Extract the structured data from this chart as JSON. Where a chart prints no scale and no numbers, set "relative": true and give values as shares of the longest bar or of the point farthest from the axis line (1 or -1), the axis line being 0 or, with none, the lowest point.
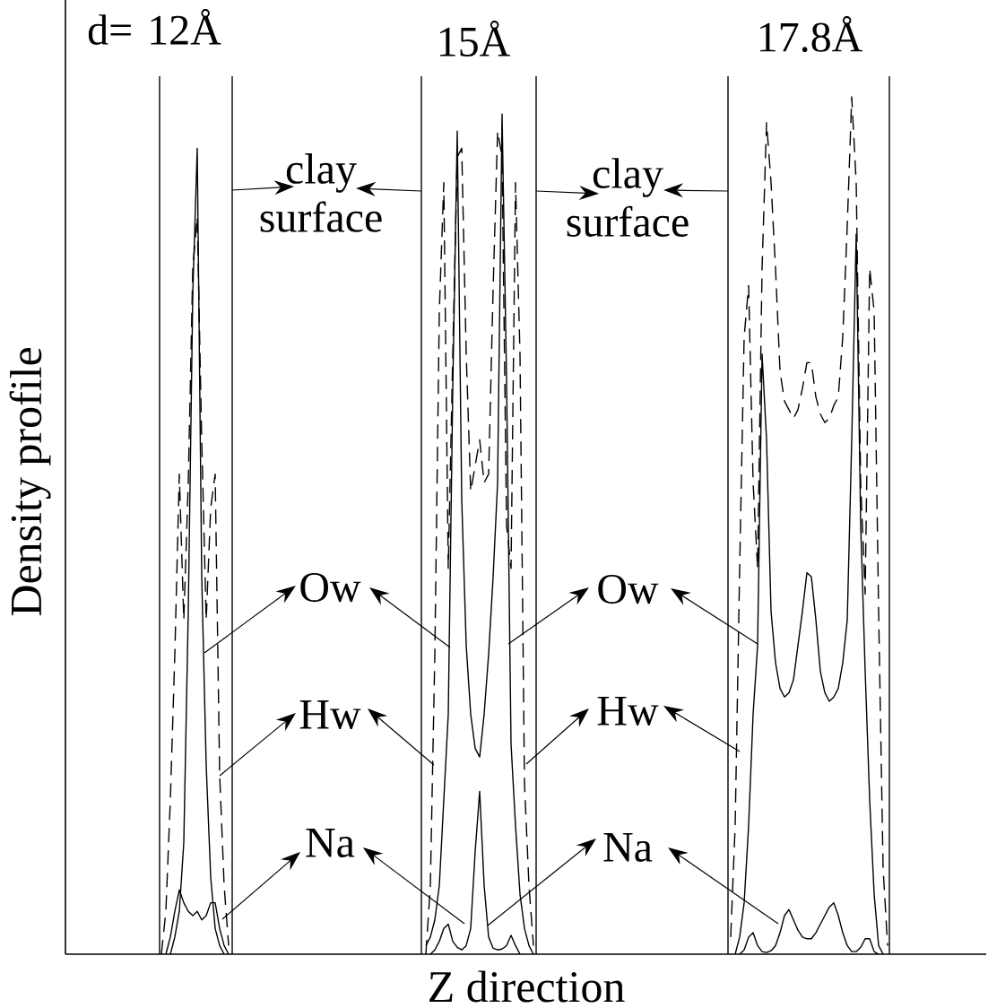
{
  "chart_data": {
    "type": "line",
    "relative": true,
    "xlabel": "Z direction",
    "ylabel": "Density profile",
    "annotations": [
      "d= 12Å",
      "15Å",
      "17.8Å",
      "clay surface",
      "clay surface",
      "Ow",
      "Ow",
      "Hw",
      "Hw",
      "Na",
      "Na"
    ],
    "categories": [
      null,
      null,
      null,
      null,
      null,
      null,
      null,
      null,
      null,
      null,
      null,
      null,
      null,
      null,
      null,
      null,
      null,
      null,
      null,
      null,
      null,
      null,
      null,
      null,
      null,
      null,
      null,
      null,
      null,
      null,
      null,
      null,
      null,
      null,
      null,
      null,
      null,
      null,
      null,
      null,
      null,
      null,
      null,
      null,
      null,
      null,
      null,
      null,
      null,
      null,
      null,
      null,
      null,
      null,
      null,
      null,
      null,
      null,
      null,
      null,
      null,
      null,
      null,
      null,
      null,
      null,
      null,
      null,
      null,
      null,
      null,
      null,
      null,
      null,
      null,
      null,
      null,
      null,
      null,
      null,
      null,
      null,
      null,
      null,
      null,
      null,
      null,
      null,
      null,
      null,
      null,
      null,
      null,
      null,
      null,
      null,
      null,
      null,
      null,
      null,
      null,
      null,
      null,
      null,
      null,
      null,
      null,
      null,
      null,
      null,
      null,
      null,
      null,
      null,
      null,
      null,
      null,
      null,
      null,
      null,
      null,
      null,
      null,
      null,
      null,
      null,
      null,
      null,
      null,
      null,
      null,
      null,
      null,
      null,
      null,
      null,
      null,
      null,
      null,
      null,
      null,
      null,
      null,
      null,
      null,
      null,
      null,
      null,
      null,
      null,
      null,
      null,
      null,
      null,
      null,
      null,
      null,
      null,
      null,
      null,
      null,
      null,
      null,
      null,
      null,
      null,
      null,
      null,
      null,
      null,
      null,
      null,
      null,
      null,
      null,
      null,
      null,
      null,
      null,
      null,
      null,
      null,
      null,
      null,
      null,
      null,
      null,
      null,
      null,
      null,
      null,
      null,
      null,
      null,
      null,
      null,
      null,
      null,
      null,
      null,
      null,
      null,
      null,
      null,
      null,
      null
    ],
    "series": [
      {
        "color": "#000000",
        "line_style": "solid",
        "values": [
          null,
          null,
          null,
          null,
          null,
          null,
          null,
          null,
          null,
          null,
          null,
          null,
          null,
          null,
          null,
          null,
          null,
          null,
          null,
          null,
          null,
          null,
          null,
          0.0,
          0.02,
          0.05,
          0.13,
          0.4,
          0.77,
          0.94,
          0.44,
          0.22,
          0.09,
          0.03,
          0.01,
          0.0,
          null,
          null,
          null,
          null,
          null,
          null,
          null,
          null,
          null,
          null,
          null,
          null,
          null,
          null,
          null,
          null,
          null,
          null,
          null,
          null,
          null,
          null,
          null,
          null,
          null,
          null,
          null,
          null,
          null,
          null,
          null,
          null,
          null,
          null,
          null,
          null,
          null,
          null,
          null,
          null,
          null,
          null,
          null,
          null,
          null,
          null,
          null,
          null,
          null,
          null,
          null,
          null,
          null,
          null,
          null,
          null,
          null,
          null,
          null,
          null,
          null,
          null,
          null,
          null,
          null,
          null,
          null,
          null,
          null,
          null,
          null,
          null,
          null,
          null,
          null,
          null,
          null,
          null,
          null,
          null,
          null,
          null,
          null,
          null,
          null,
          null,
          null,
          null,
          null,
          null,
          null,
          null,
          null,
          null,
          null,
          null,
          null,
          null,
          null,
          null,
          null,
          null,
          null,
          null,
          null,
          null,
          null,
          null,
          null,
          null,
          null,
          null,
          null,
          null,
          null,
          null,
          null,
          null,
          null,
          null,
          null,
          null,
          null,
          null,
          null,
          null,
          null,
          null,
          null,
          null,
          null,
          null,
          null,
          null,
          null,
          null,
          null,
          null,
          null,
          null,
          null,
          null,
          null,
          null,
          null,
          null,
          null,
          null,
          null,
          null,
          null,
          null,
          null,
          null,
          null,
          null,
          null,
          null,
          null,
          null,
          null,
          null,
          null,
          null,
          null,
          null,
          null,
          null,
          null,
          null
        ]
      },
      {
        "color": "#000000",
        "line_style": "dashed",
        "values": [
          null,
          null,
          null,
          null,
          null,
          null,
          null,
          null,
          null,
          null,
          null,
          null,
          null,
          null,
          null,
          null,
          null,
          null,
          null,
          null,
          null,
          0.0,
          0.05,
          0.18,
          0.35,
          0.56,
          0.39,
          0.55,
          0.8,
          0.86,
          0.6,
          0.39,
          0.52,
          0.56,
          0.21,
          0.08,
          0.01,
          null,
          null,
          null,
          null,
          null,
          null,
          null,
          null,
          null,
          null,
          null,
          null,
          null,
          null,
          null,
          null,
          null,
          null,
          null,
          null,
          null,
          null,
          null,
          null,
          null,
          null,
          null,
          null,
          null,
          null,
          null,
          null,
          null,
          null,
          null,
          null,
          null,
          null,
          null,
          null,
          null,
          null,
          null,
          null,
          null,
          null,
          null,
          null,
          null,
          null,
          null,
          null,
          null,
          null,
          null,
          null,
          null,
          null,
          null,
          null,
          null,
          null,
          null,
          null,
          null,
          null,
          null,
          null,
          null,
          null,
          null,
          null,
          null,
          null,
          null,
          null,
          null,
          null,
          null,
          null,
          null,
          null,
          null,
          null,
          null,
          null,
          null,
          null,
          null,
          null,
          null,
          null,
          null,
          null,
          null,
          null,
          null,
          null,
          null,
          null,
          null,
          null,
          null,
          null,
          null,
          null,
          null,
          null,
          null,
          null,
          null,
          null,
          null,
          null,
          null,
          null,
          null,
          null,
          null,
          null,
          null,
          null,
          null,
          null,
          null,
          null,
          null,
          null,
          null,
          null,
          null,
          null,
          null,
          null,
          null,
          null,
          null,
          null,
          null,
          null,
          null,
          null,
          null,
          null,
          null,
          null,
          null,
          null,
          null,
          null,
          null,
          null,
          null,
          null,
          null,
          null,
          null,
          null,
          null,
          null,
          null,
          null,
          null,
          null,
          null,
          null,
          null,
          null,
          null
        ]
      },
      {
        "color": "#000000",
        "line_style": "solid",
        "values": [
          null,
          null,
          null,
          null,
          null,
          null,
          null,
          null,
          null,
          null,
          null,
          null,
          null,
          null,
          null,
          null,
          null,
          null,
          null,
          null,
          null,
          null,
          0.0,
          0.02,
          0.05,
          0.075,
          0.06,
          0.05,
          0.045,
          0.05,
          0.04,
          0.045,
          0.06,
          0.06,
          0.03,
          0.01,
          0.0,
          null,
          null,
          null,
          null,
          null,
          null,
          null,
          null,
          null,
          null,
          null,
          null,
          null,
          null,
          null,
          null,
          null,
          null,
          null,
          null,
          null,
          null,
          null,
          null,
          null,
          null,
          null,
          null,
          null,
          null,
          null,
          null,
          null,
          null,
          null,
          null,
          null,
          null,
          null,
          null,
          null,
          null,
          null,
          null,
          null,
          null,
          null,
          null,
          null,
          null,
          null,
          null,
          null,
          null,
          null,
          null,
          null,
          null,
          null,
          null,
          null,
          null,
          null,
          null,
          null,
          null,
          null,
          null,
          null,
          null,
          null,
          null,
          null,
          null,
          null,
          null,
          null,
          null,
          null,
          null,
          null,
          null,
          null,
          null,
          null,
          null,
          null,
          null,
          null,
          null,
          null,
          null,
          null,
          null,
          null,
          null,
          null,
          null,
          null,
          null,
          null,
          null,
          null,
          null,
          null,
          null,
          null,
          null,
          null,
          null,
          null,
          null,
          null,
          null,
          null,
          null,
          null,
          null,
          null,
          null,
          null,
          null,
          null,
          null,
          null,
          null,
          null,
          null,
          null,
          null,
          null,
          null,
          null,
          null,
          null,
          null,
          null,
          null,
          null,
          null,
          null,
          null,
          null,
          null,
          null,
          null,
          null,
          null,
          null,
          null,
          null,
          null,
          null,
          null,
          null,
          null,
          null,
          null,
          null,
          null,
          null,
          null,
          null,
          null,
          null,
          null,
          null,
          null,
          null
        ]
      },
      {
        "color": "#000000",
        "line_style": "solid",
        "values": [
          null,
          null,
          null,
          null,
          null,
          null,
          null,
          null,
          null,
          null,
          null,
          null,
          null,
          null,
          null,
          null,
          null,
          null,
          null,
          null,
          null,
          null,
          null,
          null,
          null,
          null,
          null,
          null,
          null,
          null,
          null,
          null,
          null,
          null,
          null,
          null,
          null,
          null,
          null,
          null,
          null,
          null,
          null,
          null,
          null,
          null,
          null,
          null,
          null,
          null,
          null,
          null,
          null,
          null,
          null,
          null,
          null,
          null,
          null,
          null,
          null,
          null,
          null,
          null,
          null,
          null,
          null,
          null,
          null,
          null,
          null,
          null,
          null,
          null,
          null,
          null,
          null,
          null,
          null,
          null,
          0.01,
          0.02,
          0.04,
          0.08,
          0.18,
          0.28,
          0.66,
          0.96,
          0.53,
          0.36,
          0.28,
          0.24,
          0.23,
          0.28,
          0.35,
          0.44,
          0.55,
          0.98,
          0.67,
          0.245,
          0.15,
          0.07,
          0.03,
          0.01,
          0.0,
          null,
          null,
          null,
          null,
          null,
          null,
          null,
          null,
          null,
          null,
          null,
          null,
          null,
          null,
          null,
          null,
          null,
          null,
          null,
          null,
          null,
          null,
          null,
          null,
          null,
          null,
          null,
          null,
          null,
          null,
          null,
          null,
          null,
          null,
          null,
          null,
          null,
          null,
          null,
          null,
          null,
          null,
          null,
          null,
          null,
          null,
          null,
          null,
          null,
          null,
          null,
          null,
          null,
          null,
          null,
          null,
          null,
          null,
          null,
          null,
          null,
          null,
          null,
          null,
          null,
          null,
          null,
          null,
          null,
          null,
          null,
          null,
          null,
          null,
          null,
          null,
          null,
          null,
          null,
          null,
          null,
          null,
          null,
          null,
          null,
          null,
          null,
          null,
          null,
          null,
          null,
          null,
          null,
          null,
          null,
          null,
          null,
          null,
          null,
          null,
          null
        ]
      },
      {
        "color": "#000000",
        "line_style": "dashed",
        "values": [
          null,
          null,
          null,
          null,
          null,
          null,
          null,
          null,
          null,
          null,
          null,
          null,
          null,
          null,
          null,
          null,
          null,
          null,
          null,
          null,
          null,
          null,
          null,
          null,
          null,
          null,
          null,
          null,
          null,
          null,
          null,
          null,
          null,
          null,
          null,
          null,
          null,
          null,
          null,
          null,
          null,
          null,
          null,
          null,
          null,
          null,
          null,
          null,
          null,
          null,
          null,
          null,
          null,
          null,
          null,
          null,
          null,
          null,
          null,
          null,
          null,
          null,
          null,
          null,
          null,
          null,
          null,
          null,
          null,
          null,
          null,
          null,
          null,
          null,
          null,
          null,
          null,
          null,
          null,
          null,
          0.0,
          0.08,
          0.35,
          0.75,
          0.9,
          0.45,
          0.7,
          0.93,
          0.94,
          0.7,
          0.54,
          0.57,
          0.6,
          0.55,
          0.56,
          0.775,
          0.96,
          0.93,
          0.5,
          0.45,
          0.9,
          0.7,
          0.2,
          0.08,
          0.01,
          null,
          null,
          null,
          null,
          null,
          null,
          null,
          null,
          null,
          null,
          null,
          null,
          null,
          null,
          null,
          null,
          null,
          null,
          null,
          null,
          null,
          null,
          null,
          null,
          null,
          null,
          null,
          null,
          null,
          null,
          null,
          null,
          null,
          null,
          null,
          null,
          null,
          null,
          null,
          null,
          null,
          null,
          null,
          null,
          null,
          null,
          null,
          null,
          null,
          null,
          null,
          null,
          null,
          null,
          null,
          null,
          null,
          null,
          null,
          null,
          null,
          null,
          null,
          null,
          null,
          null,
          null,
          null,
          null,
          null,
          null,
          null,
          null,
          null,
          null,
          null,
          null,
          null,
          null,
          null,
          null,
          null,
          null,
          null,
          null,
          null,
          null,
          null,
          null,
          null,
          null,
          null,
          null,
          null,
          null,
          null,
          null,
          null,
          null,
          null,
          null
        ]
      },
      {
        "color": "#000000",
        "line_style": "solid",
        "values": [
          null,
          null,
          null,
          null,
          null,
          null,
          null,
          null,
          null,
          null,
          null,
          null,
          null,
          null,
          null,
          null,
          null,
          null,
          null,
          null,
          null,
          null,
          null,
          null,
          null,
          null,
          null,
          null,
          null,
          null,
          null,
          null,
          null,
          null,
          null,
          null,
          null,
          null,
          null,
          null,
          null,
          null,
          null,
          null,
          null,
          null,
          null,
          null,
          null,
          null,
          null,
          null,
          null,
          null,
          null,
          null,
          null,
          null,
          null,
          null,
          null,
          null,
          null,
          null,
          null,
          null,
          null,
          null,
          null,
          null,
          null,
          null,
          null,
          null,
          null,
          null,
          null,
          null,
          null,
          null,
          null,
          0.0,
          0.005,
          0.015,
          0.03,
          0.035,
          0.015,
          0.008,
          0.005,
          0.01,
          0.03,
          0.12,
          0.19,
          0.08,
          0.02,
          0.007,
          0.005,
          0.006,
          0.01,
          0.022,
          0.01,
          0.0,
          null,
          null,
          null,
          null,
          null,
          null,
          null,
          null,
          null,
          null,
          null,
          null,
          null,
          null,
          null,
          null,
          null,
          null,
          null,
          null,
          null,
          null,
          null,
          null,
          null,
          null,
          null,
          null,
          null,
          null,
          null,
          null,
          null,
          null,
          null,
          null,
          null,
          null,
          null,
          null,
          null,
          null,
          null,
          null,
          null,
          null,
          null,
          null,
          null,
          null,
          null,
          null,
          null,
          null,
          null,
          null,
          null,
          null,
          null,
          null,
          null,
          null,
          null,
          null,
          null,
          null,
          null,
          null,
          null,
          null,
          null,
          null,
          null,
          null,
          null,
          null,
          null,
          null,
          null,
          null,
          null,
          null,
          null,
          null,
          null,
          null,
          null,
          null,
          null,
          null,
          null,
          null,
          null,
          null,
          null,
          null,
          null,
          null,
          null,
          null,
          null,
          null,
          null,
          null
        ]
      },
      {
        "color": "#000000",
        "line_style": "solid",
        "values": [
          null,
          null,
          null,
          null,
          null,
          null,
          null,
          null,
          null,
          null,
          null,
          null,
          null,
          null,
          null,
          null,
          null,
          null,
          null,
          null,
          null,
          null,
          null,
          null,
          null,
          null,
          null,
          null,
          null,
          null,
          null,
          null,
          null,
          null,
          null,
          null,
          null,
          null,
          null,
          null,
          null,
          null,
          null,
          null,
          null,
          null,
          null,
          null,
          null,
          null,
          null,
          null,
          null,
          null,
          null,
          null,
          null,
          null,
          null,
          null,
          null,
          null,
          null,
          null,
          null,
          null,
          null,
          null,
          null,
          null,
          null,
          null,
          null,
          null,
          null,
          null,
          null,
          null,
          null,
          null,
          null,
          null,
          null,
          null,
          null,
          null,
          null,
          null,
          null,
          null,
          null,
          null,
          null,
          null,
          null,
          null,
          null,
          null,
          null,
          null,
          null,
          null,
          null,
          null,
          null,
          null,
          null,
          null,
          null,
          null,
          null,
          null,
          null,
          null,
          null,
          null,
          null,
          null,
          null,
          null,
          null,
          null,
          null,
          null,
          null,
          null,
          null,
          null,
          null,
          null,
          null,
          null,
          null,
          null,
          null,
          null,
          null,
          null,
          null,
          null,
          null,
          null,
          null,
          null,
          null,
          null,
          null,
          null,
          null,
          0.0,
          0.02,
          0.06,
          0.15,
          0.28,
          0.36,
          0.7,
          0.6,
          0.4,
          0.34,
          0.31,
          0.3,
          0.305,
          0.32,
          0.36,
          0.4,
          0.445,
          0.44,
          0.39,
          0.33,
          0.305,
          0.295,
          0.3,
          0.31,
          0.34,
          0.39,
          0.6,
          0.84,
          0.5,
          0.33,
          0.18,
          0.07,
          0.01,
          0.0,
          null,
          null,
          null,
          null,
          null,
          null,
          null,
          null,
          null,
          null,
          null,
          null,
          null,
          null,
          null,
          null,
          null,
          null,
          null,
          null,
          null,
          null,
          null
        ]
      },
      {
        "color": "#000000",
        "line_style": "dashed",
        "values": [
          null,
          null,
          null,
          null,
          null,
          null,
          null,
          null,
          null,
          null,
          null,
          null,
          null,
          null,
          null,
          null,
          null,
          null,
          null,
          null,
          null,
          null,
          null,
          null,
          null,
          null,
          null,
          null,
          null,
          null,
          null,
          null,
          null,
          null,
          null,
          null,
          null,
          null,
          null,
          null,
          null,
          null,
          null,
          null,
          null,
          null,
          null,
          null,
          null,
          null,
          null,
          null,
          null,
          null,
          null,
          null,
          null,
          null,
          null,
          null,
          null,
          null,
          null,
          null,
          null,
          null,
          null,
          null,
          null,
          null,
          null,
          null,
          null,
          null,
          null,
          null,
          null,
          null,
          null,
          null,
          null,
          null,
          null,
          null,
          null,
          null,
          null,
          null,
          null,
          null,
          null,
          null,
          null,
          null,
          null,
          null,
          null,
          null,
          null,
          null,
          null,
          null,
          null,
          null,
          null,
          null,
          null,
          null,
          null,
          null,
          null,
          null,
          null,
          null,
          null,
          null,
          null,
          null,
          null,
          null,
          null,
          null,
          null,
          null,
          null,
          null,
          null,
          null,
          null,
          null,
          null,
          null,
          null,
          null,
          null,
          null,
          null,
          null,
          null,
          null,
          null,
          null,
          null,
          null,
          null,
          null,
          null,
          null,
          0.02,
          0.15,
          0.45,
          0.72,
          0.78,
          0.55,
          0.45,
          0.8,
          0.97,
          0.9,
          0.8,
          0.68,
          0.645,
          0.635,
          0.625,
          0.635,
          0.66,
          0.69,
          0.69,
          0.65,
          0.63,
          0.62,
          0.625,
          0.64,
          0.65,
          0.72,
          0.85,
          1.0,
          0.9,
          0.55,
          0.42,
          0.8,
          0.75,
          0.4,
          0.1,
          0.01,
          null,
          null,
          null,
          null,
          null,
          null,
          null,
          null,
          null,
          null,
          null,
          null,
          null,
          null,
          null,
          null,
          null,
          null,
          null,
          null,
          null,
          null
        ]
      },
      {
        "color": "#000000",
        "line_style": "solid",
        "values": [
          null,
          null,
          null,
          null,
          null,
          null,
          null,
          null,
          null,
          null,
          null,
          null,
          null,
          null,
          null,
          null,
          null,
          null,
          null,
          null,
          null,
          null,
          null,
          null,
          null,
          null,
          null,
          null,
          null,
          null,
          null,
          null,
          null,
          null,
          null,
          null,
          null,
          null,
          null,
          null,
          null,
          null,
          null,
          null,
          null,
          null,
          null,
          null,
          null,
          null,
          null,
          null,
          null,
          null,
          null,
          null,
          null,
          null,
          null,
          null,
          null,
          null,
          null,
          null,
          null,
          null,
          null,
          null,
          null,
          null,
          null,
          null,
          null,
          null,
          null,
          null,
          null,
          null,
          null,
          null,
          null,
          null,
          null,
          null,
          null,
          null,
          null,
          null,
          null,
          null,
          null,
          null,
          null,
          null,
          null,
          null,
          null,
          null,
          null,
          null,
          null,
          null,
          null,
          null,
          null,
          null,
          null,
          null,
          null,
          null,
          null,
          null,
          null,
          null,
          null,
          null,
          null,
          null,
          null,
          null,
          null,
          null,
          null,
          null,
          null,
          null,
          null,
          null,
          null,
          null,
          null,
          null,
          null,
          null,
          null,
          null,
          null,
          null,
          null,
          null,
          null,
          null,
          null,
          null,
          null,
          null,
          null,
          null,
          null,
          null,
          0.0,
          0.005,
          0.02,
          0.025,
          0.01,
          0.003,
          0.002,
          0.004,
          0.01,
          0.025,
          0.045,
          0.052,
          0.04,
          0.028,
          0.02,
          0.018,
          0.018,
          0.025,
          0.035,
          0.045,
          0.055,
          0.06,
          0.045,
          0.025,
          0.01,
          0.003,
          0.003,
          0.008,
          0.018,
          0.018,
          0.003,
          0.0,
          null,
          null,
          null,
          null,
          null,
          null,
          null,
          null,
          null,
          null,
          null,
          null,
          null,
          null,
          null,
          null,
          null,
          null,
          null,
          null,
          null,
          null,
          null,
          null
        ]
      }
    ]
  }
}
